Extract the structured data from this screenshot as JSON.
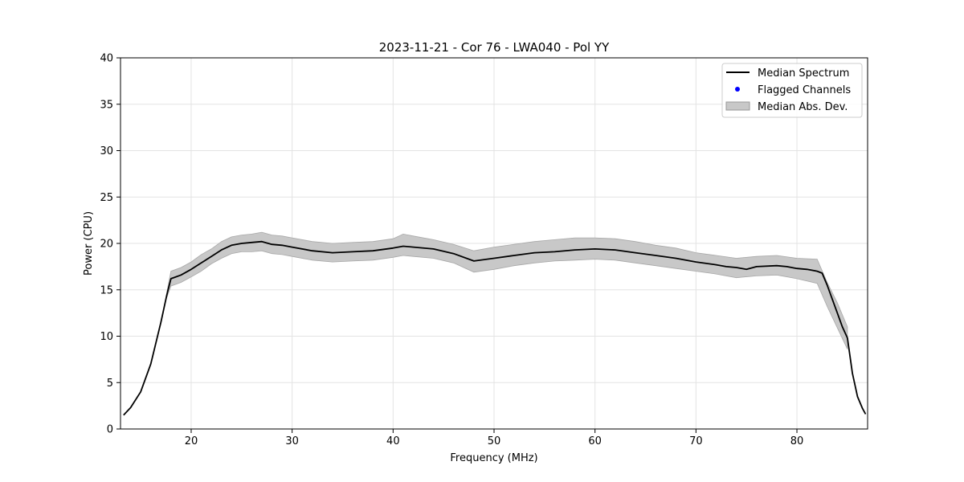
{
  "chart_data": {
    "type": "line",
    "title": "2023-11-21 - Cor 76 - LWA040 - Pol YY",
    "xlabel": "Frequency (MHz)",
    "ylabel": "Power (CPU)",
    "xlim": [
      13,
      87
    ],
    "ylim": [
      0,
      40
    ],
    "xticks": [
      20,
      30,
      40,
      50,
      60,
      70,
      80
    ],
    "yticks": [
      0,
      5,
      10,
      15,
      20,
      25,
      30,
      35,
      40
    ],
    "grid": true,
    "legend_position": "top-right",
    "legend": [
      {
        "label": "Median Spectrum",
        "kind": "line",
        "color": "#000000"
      },
      {
        "label": "Flagged Channels",
        "kind": "point",
        "color": "#0000ff"
      },
      {
        "label": "Median Abs. Dev.",
        "kind": "band",
        "color": "#bfbfbf"
      }
    ],
    "series": [
      {
        "name": "Median Spectrum",
        "x": [
          13.3,
          14.0,
          15.0,
          16.0,
          17.0,
          17.6,
          18.0,
          18.5,
          19.0,
          20.0,
          21.0,
          22.0,
          23.0,
          24.0,
          25.0,
          26.0,
          27.0,
          28.0,
          29.0,
          30.0,
          32.0,
          34.0,
          36.0,
          38.0,
          40.0,
          41.0,
          42.0,
          44.0,
          46.0,
          48.0,
          50.0,
          52.0,
          54.0,
          56.0,
          58.0,
          60.0,
          62.0,
          64.0,
          66.0,
          68.0,
          70.0,
          72.0,
          73.0,
          74.0,
          75.0,
          76.0,
          78.0,
          79.0,
          80.0,
          81.0,
          82.0,
          82.5,
          83.0,
          83.5,
          84.0,
          84.5,
          85.0,
          85.5,
          86.0,
          86.5,
          86.8
        ],
        "y": [
          1.5,
          2.3,
          4.0,
          7.0,
          11.5,
          14.5,
          16.2,
          16.4,
          16.6,
          17.2,
          17.9,
          18.6,
          19.3,
          19.8,
          20.0,
          20.1,
          20.2,
          19.9,
          19.8,
          19.6,
          19.2,
          19.0,
          19.1,
          19.2,
          19.5,
          19.7,
          19.6,
          19.4,
          18.9,
          18.1,
          18.4,
          18.7,
          19.0,
          19.1,
          19.3,
          19.4,
          19.3,
          19.0,
          18.7,
          18.4,
          18.0,
          17.7,
          17.5,
          17.4,
          17.2,
          17.5,
          17.6,
          17.5,
          17.3,
          17.2,
          17.0,
          16.8,
          15.5,
          14.0,
          12.5,
          11.0,
          9.8,
          6.0,
          3.5,
          2.2,
          1.6
        ]
      },
      {
        "name": "Median Abs. Dev.",
        "x": [
          17.6,
          18.0,
          19.0,
          20.0,
          21.0,
          22.0,
          23.0,
          24.0,
          25.0,
          26.0,
          27.0,
          28.0,
          29.0,
          30.0,
          32.0,
          34.0,
          36.0,
          38.0,
          40.0,
          41.0,
          42.0,
          44.0,
          46.0,
          48.0,
          50.0,
          52.0,
          54.0,
          56.0,
          58.0,
          60.0,
          62.0,
          64.0,
          66.0,
          68.0,
          70.0,
          72.0,
          74.0,
          76.0,
          78.0,
          80.0,
          82.0,
          83.0,
          84.0,
          85.0
        ],
        "lower": [
          14.2,
          15.4,
          15.8,
          16.4,
          17.0,
          17.8,
          18.4,
          18.9,
          19.1,
          19.1,
          19.2,
          18.9,
          18.8,
          18.6,
          18.2,
          18.0,
          18.1,
          18.2,
          18.5,
          18.7,
          18.6,
          18.4,
          17.9,
          16.9,
          17.2,
          17.6,
          17.9,
          18.1,
          18.2,
          18.3,
          18.2,
          17.9,
          17.6,
          17.3,
          17.0,
          16.7,
          16.3,
          16.5,
          16.6,
          16.2,
          15.7,
          13.2,
          10.9,
          8.6
        ],
        "upper": [
          14.8,
          17.0,
          17.4,
          18.0,
          18.8,
          19.4,
          20.2,
          20.7,
          20.9,
          21.0,
          21.2,
          20.9,
          20.8,
          20.6,
          20.2,
          20.0,
          20.1,
          20.2,
          20.5,
          21.0,
          20.8,
          20.4,
          19.9,
          19.2,
          19.6,
          19.9,
          20.2,
          20.4,
          20.6,
          20.6,
          20.5,
          20.2,
          19.8,
          19.5,
          19.0,
          18.7,
          18.4,
          18.6,
          18.7,
          18.4,
          18.3,
          15.8,
          13.6,
          11.0
        ]
      }
    ]
  }
}
